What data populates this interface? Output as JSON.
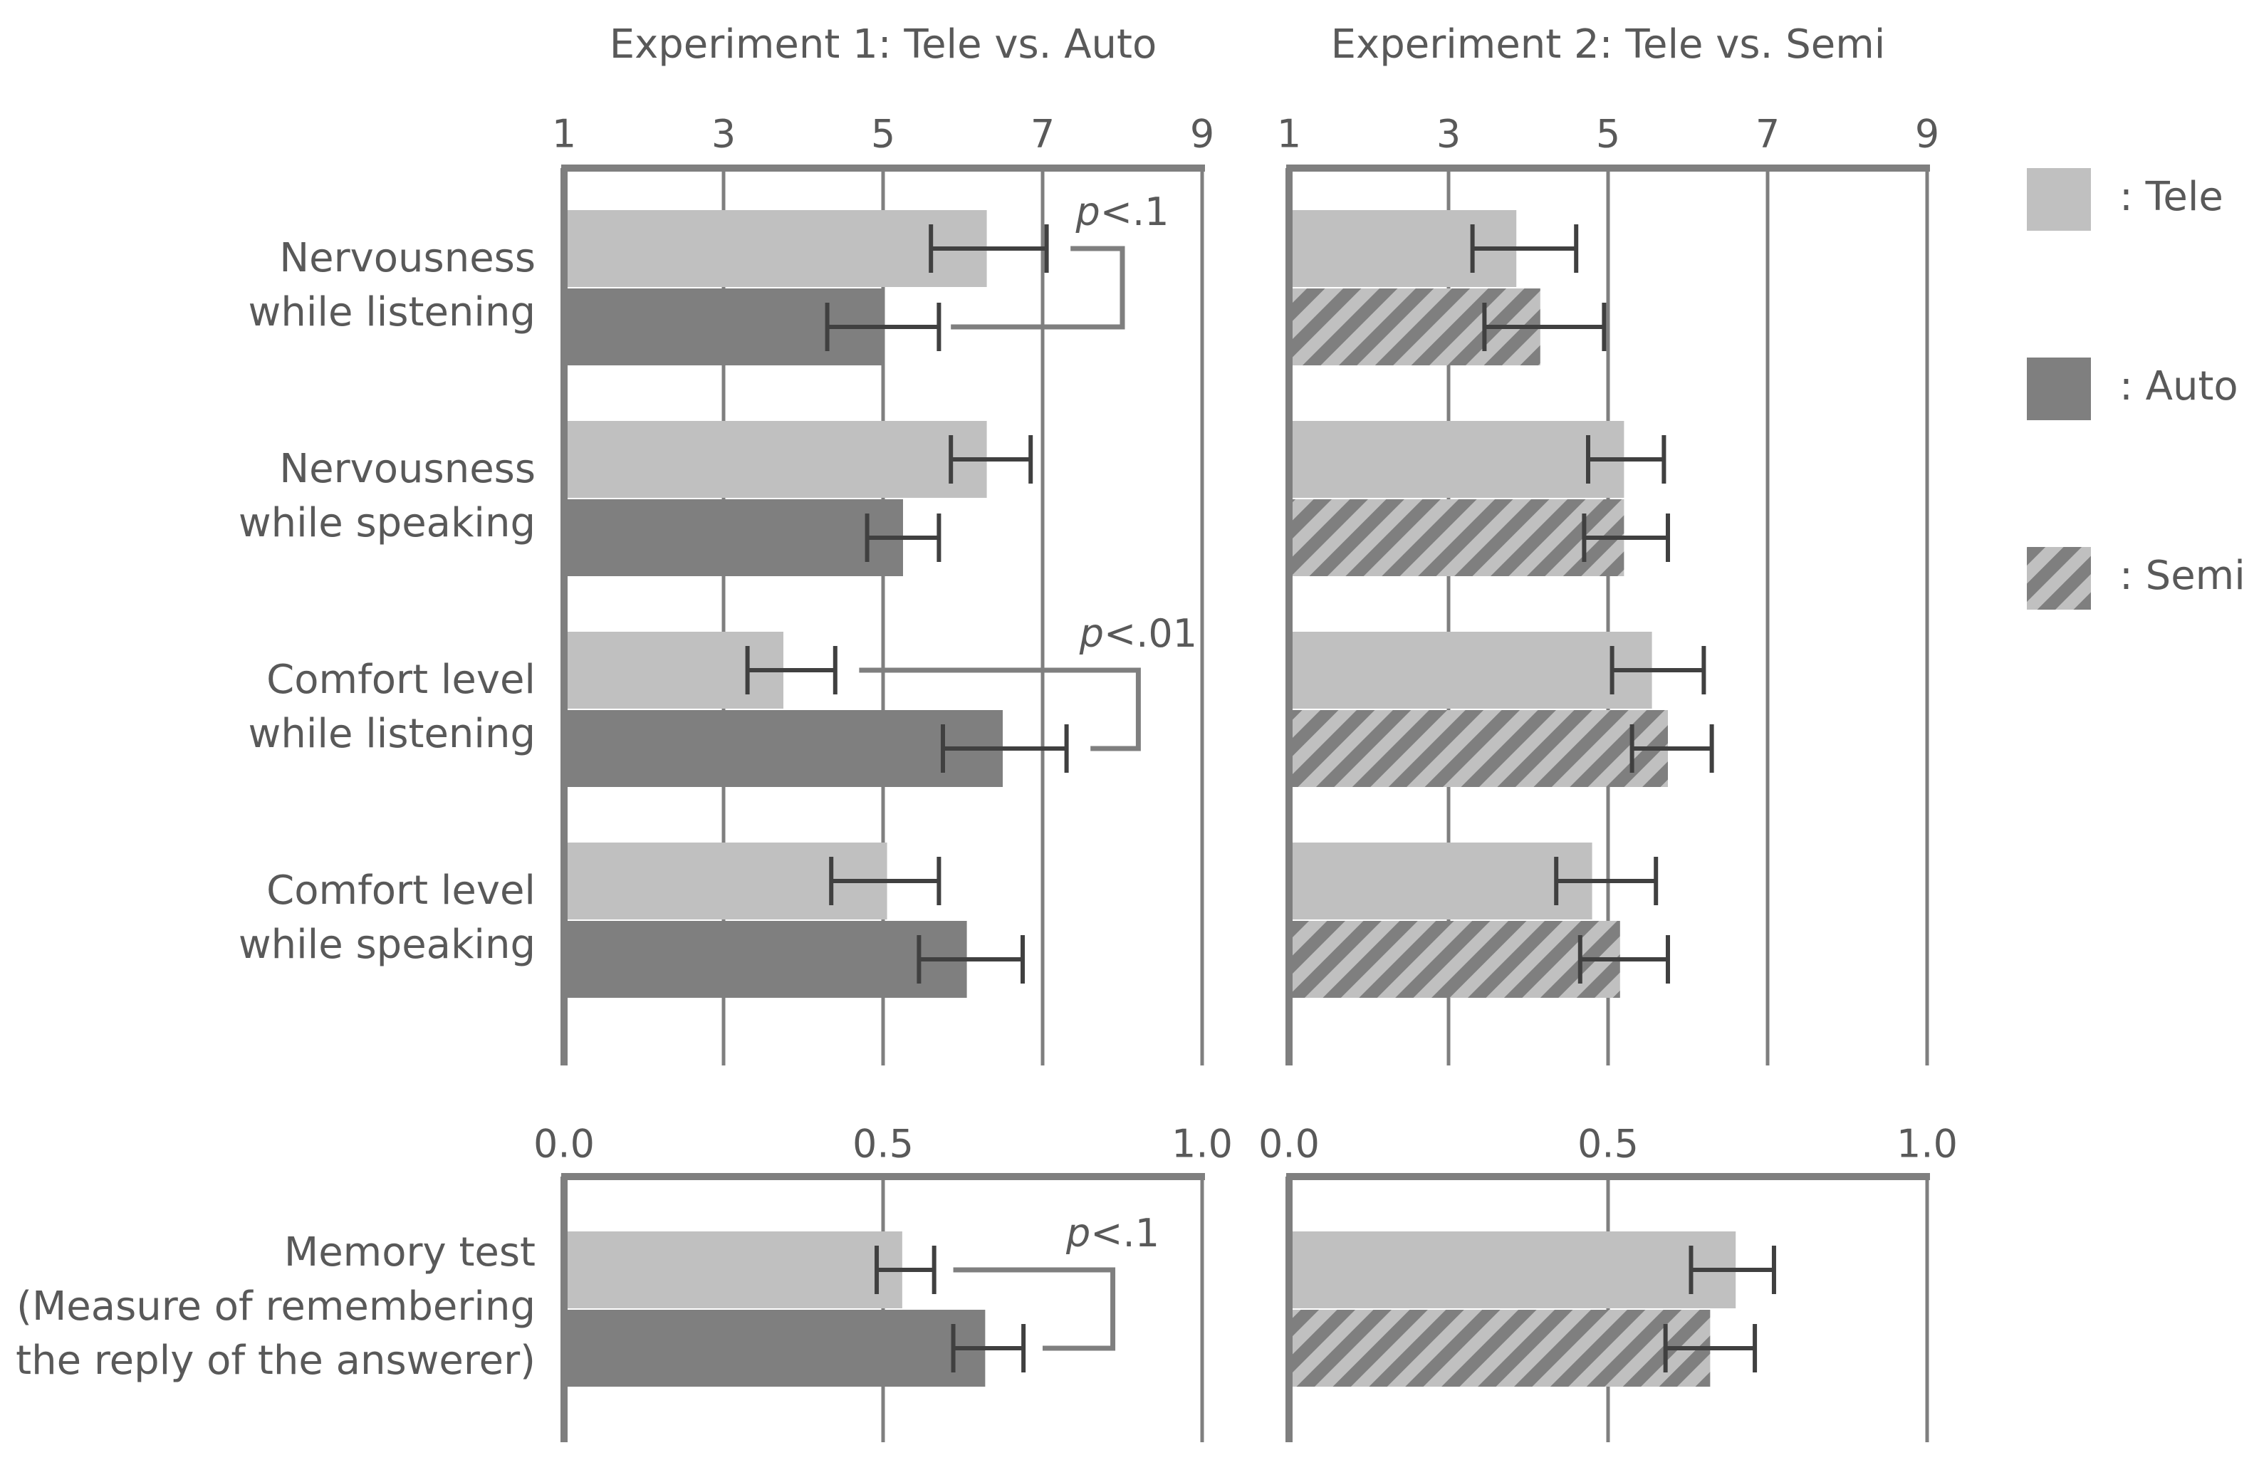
{
  "colors": {
    "tele": "#c0c0c0",
    "auto": "#7f7f7f",
    "semi_stripe": "#7f7f7f",
    "semi_bg": "#c0c0c0",
    "axis": "#7f7f7f",
    "error": "#404040",
    "text": "#595959"
  },
  "legend": [
    {
      "key": "tele",
      "label": ": Tele"
    },
    {
      "key": "auto",
      "label": ": Auto"
    },
    {
      "key": "semi",
      "label": ": Semi"
    }
  ],
  "chart_data": [
    {
      "type": "bar",
      "id": "exp1-scale",
      "title": "Experiment 1: Tele vs. Auto",
      "xlim": [
        1,
        9
      ],
      "ticks": [
        "1",
        "3",
        "5",
        "7",
        "9"
      ],
      "tick_values": [
        1,
        3,
        5,
        7,
        9
      ],
      "categories": [
        [
          "Nervousness",
          "while listening"
        ],
        [
          "Nervousness",
          "while speaking"
        ],
        [
          "Comfort level",
          "while listening"
        ],
        [
          "Comfort level",
          "while speaking"
        ]
      ],
      "series": [
        {
          "name": "Tele",
          "key": "tele",
          "values": [
            6.3,
            6.3,
            3.75,
            5.05
          ],
          "error_low": [
            5.6,
            5.85,
            3.3,
            4.35
          ],
          "error_high": [
            7.05,
            6.85,
            4.4,
            5.7
          ]
        },
        {
          "name": "Auto",
          "key": "auto",
          "values": [
            5.0,
            5.25,
            6.5,
            6.05
          ],
          "error_low": [
            4.3,
            4.8,
            5.75,
            5.45
          ],
          "error_high": [
            5.7,
            5.7,
            7.3,
            6.75
          ]
        }
      ],
      "significance": [
        {
          "category": 0,
          "label_prefix": "p",
          "label": "<.1",
          "tele_end": 7.35,
          "auto_end": 5.85,
          "bracket_x": 8.0
        },
        {
          "category": 2,
          "label_prefix": "p",
          "label": "<.01",
          "tele_end": 4.7,
          "auto_end": 7.6,
          "bracket_x": 8.2
        }
      ]
    },
    {
      "type": "bar",
      "id": "exp2-scale",
      "title": "Experiment 2: Tele vs. Semi",
      "xlim": [
        1,
        9
      ],
      "ticks": [
        "1",
        "3",
        "5",
        "7",
        "9"
      ],
      "tick_values": [
        1,
        3,
        5,
        7,
        9
      ],
      "categories": [
        [
          "Nervousness",
          "while listening"
        ],
        [
          "Nervousness",
          "while speaking"
        ],
        [
          "Comfort level",
          "while listening"
        ],
        [
          "Comfort level",
          "while speaking"
        ]
      ],
      "series": [
        {
          "name": "Tele",
          "key": "tele",
          "values": [
            3.85,
            5.2,
            5.55,
            4.8
          ],
          "error_low": [
            3.3,
            4.75,
            5.05,
            4.35
          ],
          "error_high": [
            4.6,
            5.7,
            6.2,
            5.6
          ]
        },
        {
          "name": "Semi",
          "key": "semi",
          "values": [
            4.15,
            5.2,
            5.75,
            5.15
          ],
          "error_low": [
            3.45,
            4.7,
            5.3,
            4.65
          ],
          "error_high": [
            4.95,
            5.75,
            6.3,
            5.75
          ]
        }
      ],
      "significance": []
    },
    {
      "type": "bar",
      "id": "exp1-memory",
      "xlim": [
        0,
        1
      ],
      "ticks": [
        "0.0",
        "0.5",
        "1.0"
      ],
      "tick_values": [
        0,
        0.5,
        1.0
      ],
      "categories": [
        [
          "Memory test",
          "(Measure of remembering",
          "the reply of the answerer)"
        ]
      ],
      "series": [
        {
          "name": "Tele",
          "key": "tele",
          "values": [
            0.53
          ],
          "error_low": [
            0.49
          ],
          "error_high": [
            0.58
          ]
        },
        {
          "name": "Auto",
          "key": "auto",
          "values": [
            0.66
          ],
          "error_low": [
            0.61
          ],
          "error_high": [
            0.72
          ]
        }
      ],
      "significance": [
        {
          "category": 0,
          "label_prefix": "p",
          "label": "<.1",
          "tele_end": 0.61,
          "auto_end": 0.75,
          "bracket_x": 0.86
        }
      ]
    },
    {
      "type": "bar",
      "id": "exp2-memory",
      "xlim": [
        0,
        1
      ],
      "ticks": [
        "0.0",
        "0.5",
        "1.0"
      ],
      "tick_values": [
        0,
        0.5,
        1.0
      ],
      "categories": [
        [
          "Memory test",
          "(Measure of remembering",
          "the reply of the answerer)"
        ]
      ],
      "series": [
        {
          "name": "Tele",
          "key": "tele",
          "values": [
            0.7
          ],
          "error_low": [
            0.63
          ],
          "error_high": [
            0.76
          ]
        },
        {
          "name": "Semi",
          "key": "semi",
          "values": [
            0.66
          ],
          "error_low": [
            0.59
          ],
          "error_high": [
            0.73
          ]
        }
      ],
      "significance": []
    }
  ]
}
